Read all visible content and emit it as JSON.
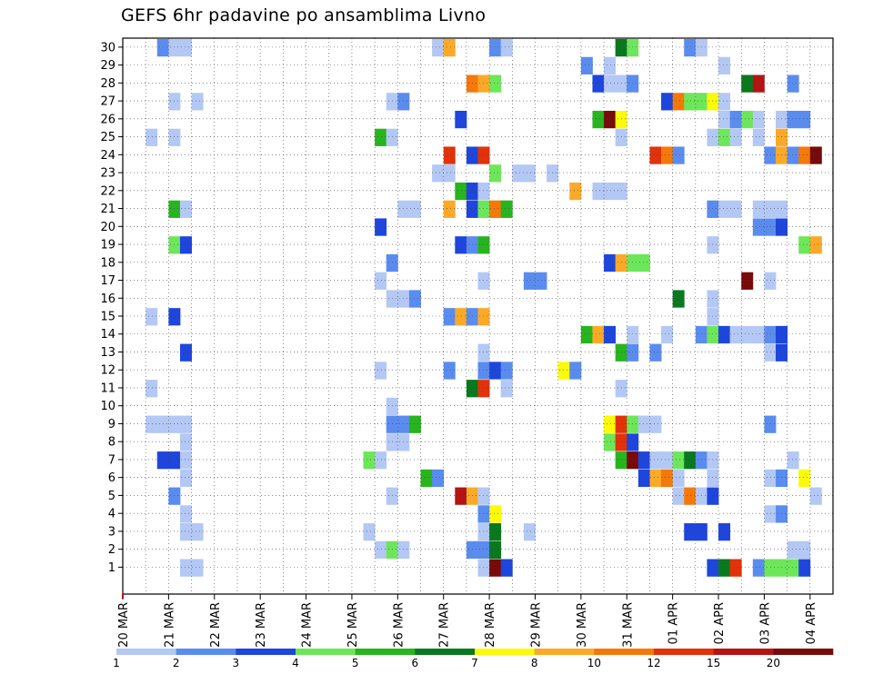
{
  "chart_data": {
    "type": "heatmap",
    "title": "GEFS 6hr padavine po ansamblima Livno",
    "xlabel": "",
    "ylabel": "",
    "x_time_steps": 62,
    "x_start": "20 MAR 00Z",
    "x_step_hours": 6,
    "x_tick_labels": [
      "20 MAR",
      "21 MAR",
      "22 MAR",
      "23 MAR",
      "24 MAR",
      "25 MAR",
      "26 MAR",
      "27 MAR",
      "28 MAR",
      "29 MAR",
      "30 MAR",
      "31 MAR",
      "01 APR",
      "02 APR",
      "03 APR",
      "04 APR"
    ],
    "y_tick_labels": [
      "1",
      "2",
      "3",
      "4",
      "5",
      "6",
      "7",
      "8",
      "9",
      "10",
      "11",
      "12",
      "13",
      "14",
      "15",
      "16",
      "17",
      "18",
      "19",
      "20",
      "21",
      "22",
      "23",
      "24",
      "25",
      "26",
      "27",
      "28",
      "29",
      "30"
    ],
    "ylim": [
      0,
      30
    ],
    "grid": "dotted",
    "colorbar": {
      "labels": [
        "1",
        "2",
        "3",
        "4",
        "5",
        "6",
        "7",
        "8",
        "10",
        "12",
        "15",
        "20"
      ],
      "colors": [
        "#b4c8f5",
        "#5a8cf0",
        "#1e46dc",
        "#6ee65a",
        "#28b41e",
        "#0a781e",
        "#fafa0a",
        "#faaa28",
        "#f5780a",
        "#e1320a",
        "#b41414",
        "#780a0a"
      ]
    },
    "cells": [
      [
        3,
        30,
        2
      ],
      [
        4,
        30,
        1
      ],
      [
        5,
        30,
        1
      ],
      [
        27,
        30,
        1
      ],
      [
        28,
        30,
        8
      ],
      [
        32,
        30,
        2
      ],
      [
        33,
        30,
        1
      ],
      [
        43,
        30,
        6
      ],
      [
        44,
        30,
        4
      ],
      [
        49,
        30,
        2
      ],
      [
        50,
        30,
        1
      ],
      [
        40,
        29,
        2
      ],
      [
        42,
        29,
        1
      ],
      [
        52,
        29,
        1
      ],
      [
        30,
        28,
        9
      ],
      [
        31,
        28,
        8
      ],
      [
        32,
        28,
        4
      ],
      [
        41,
        28,
        3
      ],
      [
        42,
        28,
        1
      ],
      [
        43,
        28,
        1
      ],
      [
        44,
        28,
        2
      ],
      [
        54,
        28,
        6
      ],
      [
        55,
        28,
        11
      ],
      [
        58,
        28,
        2
      ],
      [
        4,
        27,
        1
      ],
      [
        6,
        27,
        1
      ],
      [
        23,
        27,
        1
      ],
      [
        24,
        27,
        2
      ],
      [
        47,
        27,
        3
      ],
      [
        48,
        27,
        9
      ],
      [
        49,
        27,
        4
      ],
      [
        50,
        27,
        4
      ],
      [
        51,
        27,
        7
      ],
      [
        52,
        27,
        1
      ],
      [
        29,
        26,
        3
      ],
      [
        41,
        26,
        5
      ],
      [
        42,
        26,
        12
      ],
      [
        43,
        26,
        7
      ],
      [
        52,
        26,
        1
      ],
      [
        53,
        26,
        2
      ],
      [
        54,
        26,
        4
      ],
      [
        55,
        26,
        1
      ],
      [
        57,
        26,
        1
      ],
      [
        58,
        26,
        2
      ],
      [
        59,
        26,
        2
      ],
      [
        2,
        25,
        1
      ],
      [
        4,
        25,
        1
      ],
      [
        22,
        25,
        5
      ],
      [
        23,
        25,
        1
      ],
      [
        43,
        25,
        1
      ],
      [
        51,
        25,
        1
      ],
      [
        52,
        25,
        4
      ],
      [
        53,
        25,
        1
      ],
      [
        55,
        25,
        1
      ],
      [
        57,
        25,
        8
      ],
      [
        28,
        24,
        10
      ],
      [
        30,
        24,
        3
      ],
      [
        31,
        24,
        10
      ],
      [
        46,
        24,
        10
      ],
      [
        47,
        24,
        9
      ],
      [
        48,
        24,
        2
      ],
      [
        56,
        24,
        2
      ],
      [
        57,
        24,
        8
      ],
      [
        58,
        24,
        2
      ],
      [
        59,
        24,
        9
      ],
      [
        60,
        24,
        12
      ],
      [
        27,
        23,
        1
      ],
      [
        28,
        23,
        1
      ],
      [
        32,
        23,
        4
      ],
      [
        34,
        23,
        1
      ],
      [
        35,
        23,
        1
      ],
      [
        37,
        23,
        1
      ],
      [
        29,
        22,
        5
      ],
      [
        30,
        22,
        3
      ],
      [
        31,
        22,
        1
      ],
      [
        39,
        22,
        8
      ],
      [
        41,
        22,
        1
      ],
      [
        42,
        22,
        1
      ],
      [
        43,
        22,
        1
      ],
      [
        4,
        21,
        5
      ],
      [
        5,
        21,
        1
      ],
      [
        24,
        21,
        1
      ],
      [
        25,
        21,
        1
      ],
      [
        28,
        21,
        8
      ],
      [
        30,
        21,
        3
      ],
      [
        31,
        21,
        4
      ],
      [
        32,
        21,
        9
      ],
      [
        33,
        21,
        5
      ],
      [
        51,
        21,
        2
      ],
      [
        52,
        21,
        1
      ],
      [
        53,
        21,
        1
      ],
      [
        55,
        21,
        1
      ],
      [
        56,
        21,
        1
      ],
      [
        57,
        21,
        1
      ],
      [
        22,
        20,
        3
      ],
      [
        55,
        20,
        2
      ],
      [
        56,
        20,
        2
      ],
      [
        57,
        20,
        3
      ],
      [
        4,
        19,
        4
      ],
      [
        5,
        19,
        3
      ],
      [
        29,
        19,
        3
      ],
      [
        30,
        19,
        2
      ],
      [
        31,
        19,
        5
      ],
      [
        51,
        19,
        1
      ],
      [
        59,
        19,
        4
      ],
      [
        60,
        19,
        8
      ],
      [
        23,
        18,
        2
      ],
      [
        42,
        18,
        3
      ],
      [
        43,
        18,
        8
      ],
      [
        44,
        18,
        4
      ],
      [
        45,
        18,
        4
      ],
      [
        22,
        17,
        1
      ],
      [
        31,
        17,
        1
      ],
      [
        35,
        17,
        2
      ],
      [
        36,
        17,
        2
      ],
      [
        54,
        17,
        12
      ],
      [
        56,
        17,
        1
      ],
      [
        23,
        16,
        1
      ],
      [
        24,
        16,
        1
      ],
      [
        25,
        16,
        2
      ],
      [
        48,
        16,
        6
      ],
      [
        51,
        16,
        1
      ],
      [
        2,
        15,
        1
      ],
      [
        4,
        15,
        3
      ],
      [
        28,
        15,
        2
      ],
      [
        29,
        15,
        8
      ],
      [
        30,
        15,
        2
      ],
      [
        31,
        15,
        8
      ],
      [
        51,
        15,
        1
      ],
      [
        40,
        14,
        5
      ],
      [
        41,
        14,
        8
      ],
      [
        42,
        14,
        3
      ],
      [
        44,
        14,
        1
      ],
      [
        47,
        14,
        1
      ],
      [
        50,
        14,
        2
      ],
      [
        51,
        14,
        4
      ],
      [
        52,
        14,
        3
      ],
      [
        53,
        14,
        1
      ],
      [
        54,
        14,
        1
      ],
      [
        55,
        14,
        1
      ],
      [
        56,
        14,
        2
      ],
      [
        57,
        14,
        3
      ],
      [
        5,
        13,
        3
      ],
      [
        31,
        13,
        1
      ],
      [
        43,
        13,
        5
      ],
      [
        44,
        13,
        2
      ],
      [
        46,
        13,
        2
      ],
      [
        56,
        13,
        1
      ],
      [
        57,
        13,
        3
      ],
      [
        22,
        12,
        1
      ],
      [
        28,
        12,
        2
      ],
      [
        31,
        12,
        2
      ],
      [
        32,
        12,
        3
      ],
      [
        33,
        12,
        2
      ],
      [
        38,
        12,
        7
      ],
      [
        39,
        12,
        2
      ],
      [
        2,
        11,
        1
      ],
      [
        30,
        11,
        6
      ],
      [
        31,
        11,
        10
      ],
      [
        33,
        11,
        1
      ],
      [
        43,
        11,
        1
      ],
      [
        23,
        10,
        1
      ],
      [
        2,
        9,
        1
      ],
      [
        3,
        9,
        1
      ],
      [
        4,
        9,
        1
      ],
      [
        5,
        9,
        1
      ],
      [
        23,
        9,
        2
      ],
      [
        24,
        9,
        2
      ],
      [
        25,
        9,
        5
      ],
      [
        42,
        9,
        7
      ],
      [
        43,
        9,
        10
      ],
      [
        44,
        9,
        4
      ],
      [
        45,
        9,
        1
      ],
      [
        46,
        9,
        1
      ],
      [
        56,
        9,
        2
      ],
      [
        5,
        8,
        1
      ],
      [
        23,
        8,
        1
      ],
      [
        24,
        8,
        1
      ],
      [
        42,
        8,
        4
      ],
      [
        43,
        8,
        10
      ],
      [
        44,
        8,
        3
      ],
      [
        3,
        7,
        3
      ],
      [
        4,
        7,
        3
      ],
      [
        5,
        7,
        1
      ],
      [
        21,
        7,
        4
      ],
      [
        22,
        7,
        1
      ],
      [
        43,
        7,
        5
      ],
      [
        44,
        7,
        12
      ],
      [
        45,
        7,
        3
      ],
      [
        46,
        7,
        1
      ],
      [
        47,
        7,
        1
      ],
      [
        48,
        7,
        4
      ],
      [
        49,
        7,
        6
      ],
      [
        50,
        7,
        2
      ],
      [
        51,
        7,
        1
      ],
      [
        58,
        7,
        1
      ],
      [
        5,
        6,
        1
      ],
      [
        26,
        6,
        5
      ],
      [
        27,
        6,
        2
      ],
      [
        45,
        6,
        3
      ],
      [
        46,
        6,
        8
      ],
      [
        47,
        6,
        9
      ],
      [
        48,
        6,
        1
      ],
      [
        51,
        6,
        1
      ],
      [
        56,
        6,
        1
      ],
      [
        57,
        6,
        2
      ],
      [
        59,
        6,
        7
      ],
      [
        4,
        5,
        2
      ],
      [
        23,
        5,
        1
      ],
      [
        29,
        5,
        11
      ],
      [
        30,
        5,
        8
      ],
      [
        31,
        5,
        1
      ],
      [
        48,
        5,
        1
      ],
      [
        49,
        5,
        9
      ],
      [
        50,
        5,
        1
      ],
      [
        51,
        5,
        3
      ],
      [
        60,
        5,
        1
      ],
      [
        5,
        4,
        1
      ],
      [
        31,
        4,
        2
      ],
      [
        32,
        4,
        7
      ],
      [
        56,
        4,
        1
      ],
      [
        57,
        4,
        2
      ],
      [
        5,
        3,
        1
      ],
      [
        6,
        3,
        1
      ],
      [
        21,
        3,
        1
      ],
      [
        31,
        3,
        1
      ],
      [
        32,
        3,
        6
      ],
      [
        35,
        3,
        1
      ],
      [
        49,
        3,
        3
      ],
      [
        50,
        3,
        3
      ],
      [
        52,
        3,
        3
      ],
      [
        22,
        2,
        1
      ],
      [
        23,
        2,
        4
      ],
      [
        24,
        2,
        1
      ],
      [
        30,
        2,
        2
      ],
      [
        31,
        2,
        2
      ],
      [
        32,
        2,
        6
      ],
      [
        58,
        2,
        1
      ],
      [
        59,
        2,
        1
      ],
      [
        5,
        1,
        1
      ],
      [
        6,
        1,
        1
      ],
      [
        31,
        1,
        1
      ],
      [
        32,
        1,
        12
      ],
      [
        33,
        1,
        3
      ],
      [
        51,
        1,
        3
      ],
      [
        52,
        1,
        6
      ],
      [
        53,
        1,
        10
      ],
      [
        55,
        1,
        2
      ],
      [
        56,
        1,
        4
      ],
      [
        57,
        1,
        4
      ],
      [
        58,
        1,
        4
      ],
      [
        59,
        1,
        3
      ]
    ]
  }
}
